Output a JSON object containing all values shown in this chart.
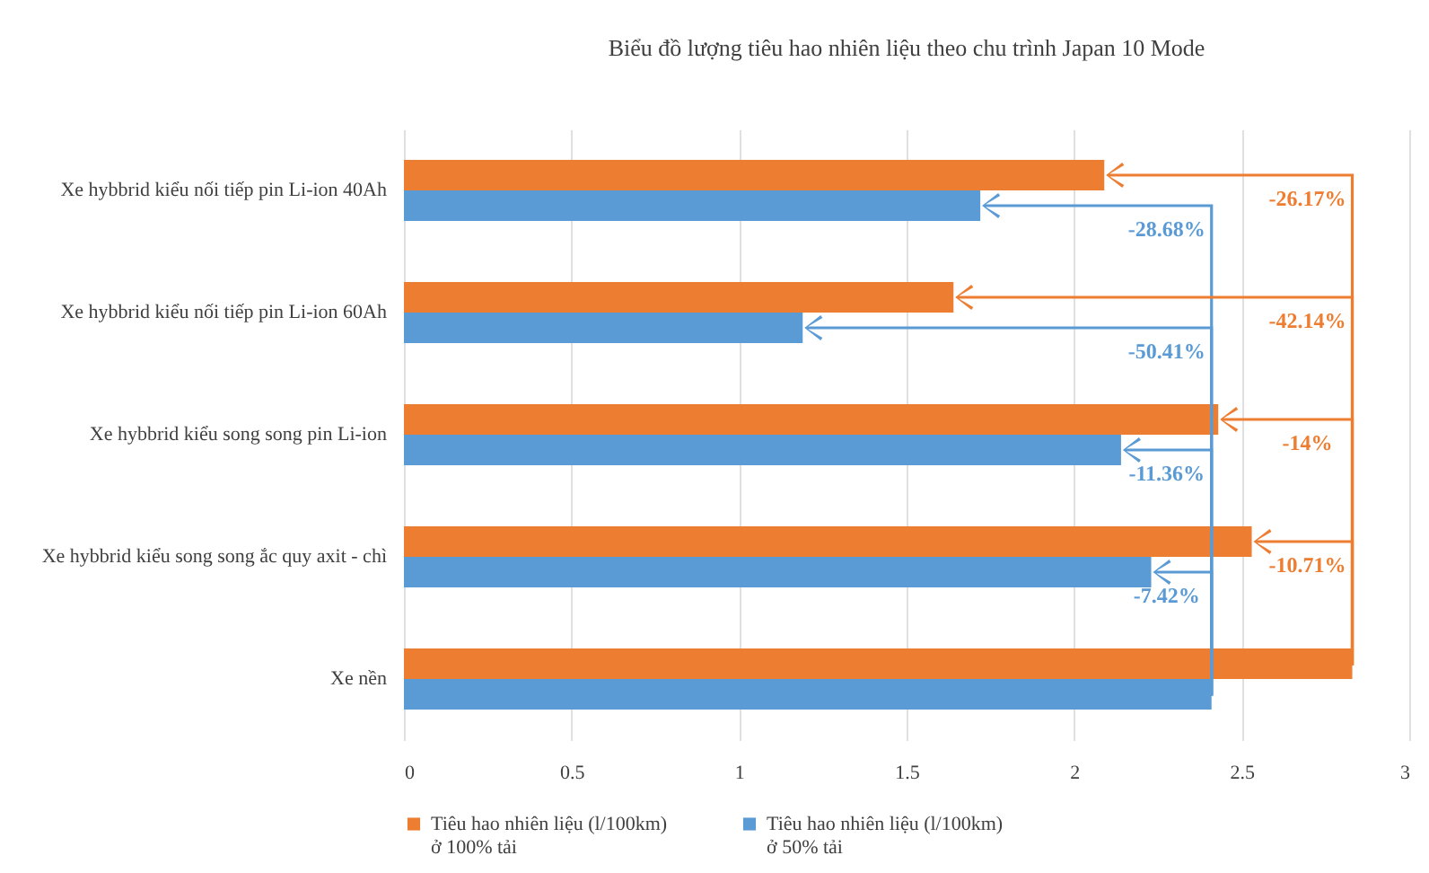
{
  "chart_data": {
    "type": "bar",
    "orientation": "horizontal",
    "title": "Biểu đồ lượng tiêu hao nhiên liệu theo chu trình Japan 10 Mode",
    "categories": [
      "Xe hybbrid  kiểu nối tiếp pin Li-ion 40Ah",
      "Xe hybbrid  kiểu nối tiếp pin Li-ion 60Ah",
      "Xe hybbrid  kiểu song song pin Li-ion",
      "Xe hybbrid  kiểu song song ắc quy axit  - chì",
      "Xe nền"
    ],
    "series": [
      {
        "name": "Tiêu hao nhiên liệu (l/100km)\nở 100% tải",
        "color": "#ed7d31",
        "values": [
          2.09,
          1.64,
          2.43,
          2.53,
          2.83
        ]
      },
      {
        "name": "Tiêu hao nhiên liệu (l/100km)\nở 50% tải",
        "color": "#5b9bd5",
        "values": [
          1.72,
          1.19,
          2.14,
          2.23,
          2.41
        ]
      }
    ],
    "xlim": [
      0,
      3
    ],
    "xticks": [
      0,
      0.5,
      1,
      1.5,
      2,
      2.5,
      3
    ],
    "grid": "x",
    "legend": "bottom",
    "annotations": [
      "-26.17%",
      "-28.68%",
      "-42.14%",
      "-50.41%",
      "-14%",
      "-11.36%",
      "-10.71%",
      "-7.42%"
    ]
  }
}
